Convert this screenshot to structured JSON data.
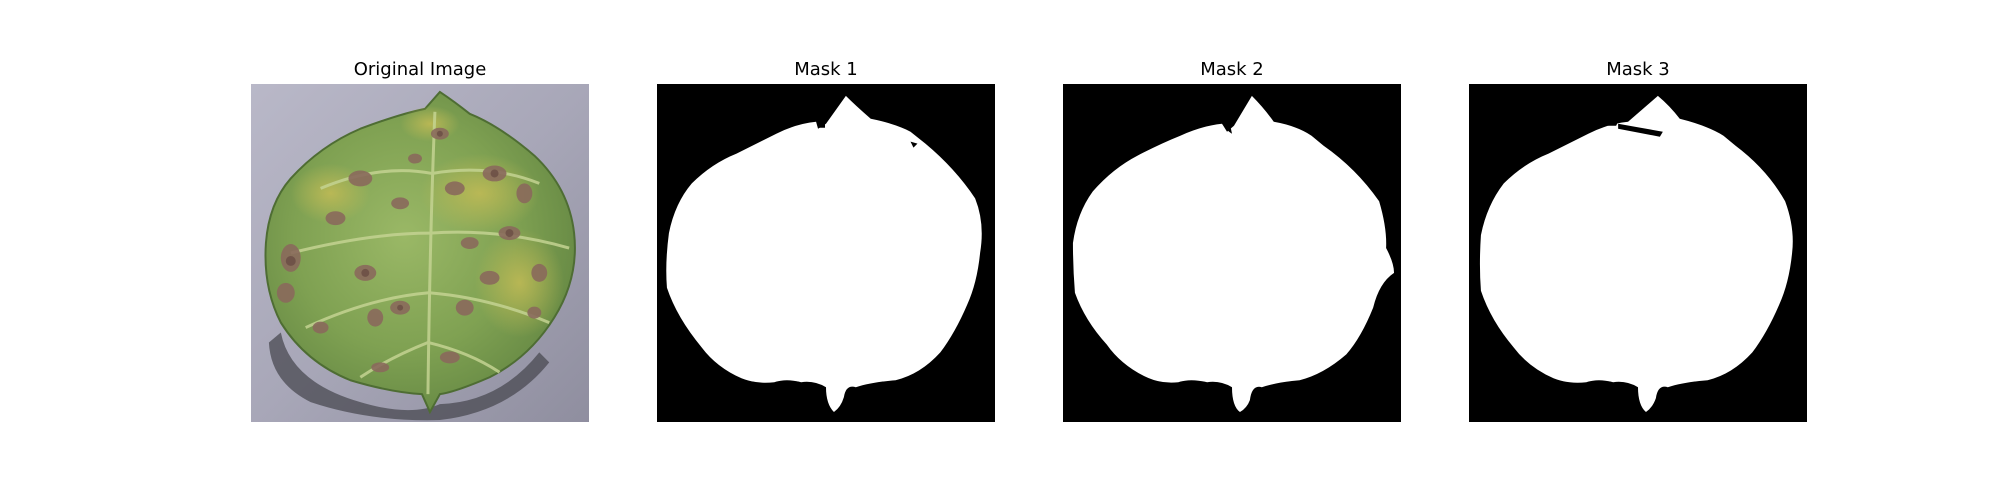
{
  "figure": {
    "panels": [
      {
        "title": "Original Image",
        "kind": "photo"
      },
      {
        "title": "Mask 1",
        "kind": "mask"
      },
      {
        "title": "Mask 2",
        "kind": "mask"
      },
      {
        "title": "Mask 3",
        "kind": "mask"
      }
    ]
  },
  "colors": {
    "background": "#ffffff",
    "mask_background": "#000000",
    "mask_foreground": "#ffffff",
    "photo_background": "#a9a8b8",
    "leaf_green": "#7fa152",
    "leaf_yellow": "#b6b24e",
    "lesion_brown": "#8a6a5c",
    "vein": "#c4d392",
    "shadow": "#4a4a52"
  }
}
